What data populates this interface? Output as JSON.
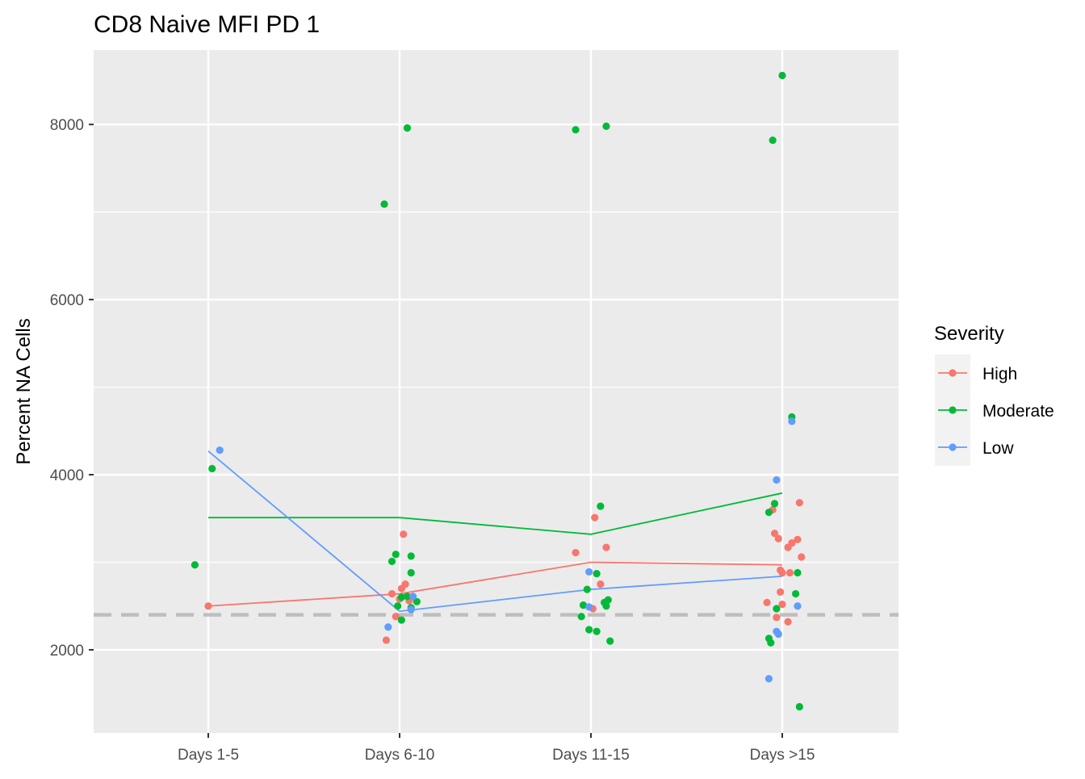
{
  "chart_data": {
    "type": "scatter",
    "title": "CD8 Naive MFI PD 1",
    "xlabel": "",
    "ylabel": "Percent NA Cells",
    "categories": [
      "Days 1-5",
      "Days 6-10",
      "Days 11-15",
      "Days >15"
    ],
    "y_ticks": [
      2000,
      4000,
      6000,
      8000
    ],
    "y_tick_labels": [
      "2000",
      "4000",
      "6000",
      "8000"
    ],
    "ylim": [
      1050,
      8850
    ],
    "grid": true,
    "reference_line": {
      "y": 2400,
      "style": "dashed",
      "color": "#BEBEBE"
    },
    "legend": {
      "title": "Severity",
      "position": "right"
    },
    "series": [
      {
        "name": "High",
        "color": "#F8766D",
        "line_means": [
          2500,
          2640,
          3000,
          2970
        ],
        "points": [
          {
            "x": 1,
            "y": 2500
          },
          {
            "x": 1.93,
            "y": 2110
          },
          {
            "x": 1.96,
            "y": 2640
          },
          {
            "x": 1.98,
            "y": 2380
          },
          {
            "x": 2.01,
            "y": 2700
          },
          {
            "x": 2.03,
            "y": 2750
          },
          {
            "x": 2.02,
            "y": 3320
          },
          {
            "x": 2.0,
            "y": 2580
          },
          {
            "x": 2.05,
            "y": 2560
          },
          {
            "x": 2.92,
            "y": 3110
          },
          {
            "x": 3.02,
            "y": 3510
          },
          {
            "x": 3.05,
            "y": 2750
          },
          {
            "x": 3.08,
            "y": 3170
          },
          {
            "x": 3.01,
            "y": 2470
          },
          {
            "x": 3.92,
            "y": 2540
          },
          {
            "x": 3.95,
            "y": 3600
          },
          {
            "x": 3.96,
            "y": 3330
          },
          {
            "x": 3.98,
            "y": 3270
          },
          {
            "x": 3.99,
            "y": 2910
          },
          {
            "x": 4.0,
            "y": 2880
          },
          {
            "x": 3.97,
            "y": 2370
          },
          {
            "x": 3.99,
            "y": 2660
          },
          {
            "x": 4.0,
            "y": 2520
          },
          {
            "x": 4.03,
            "y": 2320
          },
          {
            "x": 4.03,
            "y": 3170
          },
          {
            "x": 4.05,
            "y": 3220
          },
          {
            "x": 4.04,
            "y": 2880
          },
          {
            "x": 4.08,
            "y": 3260
          },
          {
            "x": 4.09,
            "y": 3680
          },
          {
            "x": 4.1,
            "y": 3060
          }
        ]
      },
      {
        "name": "Moderate",
        "color": "#00BA38",
        "line_means": [
          3510,
          3510,
          3320,
          3790
        ],
        "points": [
          {
            "x": 0.93,
            "y": 2970
          },
          {
            "x": 1.02,
            "y": 4070
          },
          {
            "x": 1.92,
            "y": 7090
          },
          {
            "x": 2.04,
            "y": 7960
          },
          {
            "x": 1.96,
            "y": 3010
          },
          {
            "x": 1.98,
            "y": 3090
          },
          {
            "x": 2.06,
            "y": 3070
          },
          {
            "x": 2.06,
            "y": 2880
          },
          {
            "x": 1.99,
            "y": 2500
          },
          {
            "x": 2.01,
            "y": 2600
          },
          {
            "x": 2.04,
            "y": 2610
          },
          {
            "x": 2.09,
            "y": 2550
          },
          {
            "x": 2.01,
            "y": 2340
          },
          {
            "x": 2.06,
            "y": 2480
          },
          {
            "x": 2.92,
            "y": 7940
          },
          {
            "x": 3.08,
            "y": 7980
          },
          {
            "x": 3.05,
            "y": 3640
          },
          {
            "x": 2.98,
            "y": 2690
          },
          {
            "x": 3.03,
            "y": 2870
          },
          {
            "x": 2.96,
            "y": 2510
          },
          {
            "x": 2.95,
            "y": 2380
          },
          {
            "x": 2.99,
            "y": 2230
          },
          {
            "x": 3.03,
            "y": 2210
          },
          {
            "x": 3.07,
            "y": 2540
          },
          {
            "x": 3.09,
            "y": 2570
          },
          {
            "x": 3.08,
            "y": 2500
          },
          {
            "x": 3.1,
            "y": 2100
          },
          {
            "x": 3.95,
            "y": 7820
          },
          {
            "x": 4.0,
            "y": 8560
          },
          {
            "x": 4.05,
            "y": 4660
          },
          {
            "x": 3.93,
            "y": 3570
          },
          {
            "x": 3.96,
            "y": 3670
          },
          {
            "x": 4.07,
            "y": 2640
          },
          {
            "x": 4.08,
            "y": 2880
          },
          {
            "x": 3.97,
            "y": 2470
          },
          {
            "x": 3.93,
            "y": 2130
          },
          {
            "x": 3.94,
            "y": 2080
          },
          {
            "x": 4.09,
            "y": 1350
          }
        ]
      },
      {
        "name": "Low",
        "color": "#619CFF",
        "line_means": [
          4270,
          2440,
          2690,
          2840
        ],
        "points": [
          {
            "x": 1.06,
            "y": 4280
          },
          {
            "x": 1.94,
            "y": 2260
          },
          {
            "x": 2.07,
            "y": 2610
          },
          {
            "x": 2.06,
            "y": 2460
          },
          {
            "x": 2.99,
            "y": 2890
          },
          {
            "x": 2.99,
            "y": 2490
          },
          {
            "x": 3.97,
            "y": 3940
          },
          {
            "x": 4.05,
            "y": 4610
          },
          {
            "x": 3.93,
            "y": 1670
          },
          {
            "x": 3.97,
            "y": 2210
          },
          {
            "x": 3.98,
            "y": 2180
          },
          {
            "x": 4.08,
            "y": 2500
          }
        ]
      }
    ]
  }
}
